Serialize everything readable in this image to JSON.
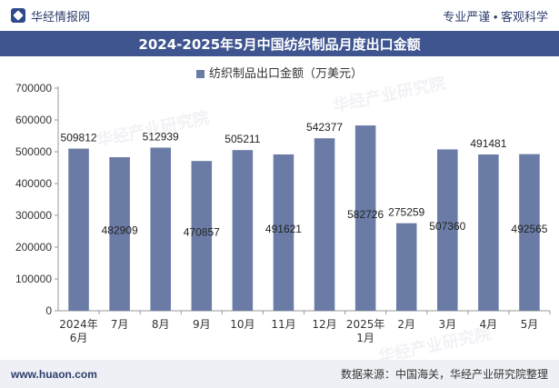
{
  "header": {
    "brand": "华经情报网",
    "slogan": "专业严谨 • 客观科学"
  },
  "watermarks": [
    "华经产业研究院",
    "华经产业研究院",
    "华经产业研究院"
  ],
  "footer": {
    "url": "www.huaon.com",
    "source": "数据来源：中国海关，华经产业研究院整理"
  },
  "colors": {
    "bar": "#6a7ca6",
    "title_bg": "#3e5590"
  },
  "chart_data": {
    "type": "bar",
    "title": "2024-2025年5月中国纺织制品月度出口金额",
    "legend_position": "top",
    "categories": [
      [
        "2024年",
        "6月"
      ],
      [
        "7月"
      ],
      [
        "8月"
      ],
      [
        "9月"
      ],
      [
        "10月"
      ],
      [
        "11月"
      ],
      [
        "12月"
      ],
      [
        "2025年",
        "1月"
      ],
      [
        "2月"
      ],
      [
        "3月"
      ],
      [
        "4月"
      ],
      [
        "5月"
      ]
    ],
    "series": [
      {
        "name": "纺织制品出口金额（万美元）",
        "values": [
          509812,
          482909,
          512939,
          470857,
          505211,
          491621,
          542377,
          582726,
          275259,
          507360,
          491481,
          492565
        ],
        "label_positions": [
          "top",
          "inside",
          "top",
          "inside",
          "top",
          "inside",
          "top",
          "inside",
          "top",
          "inside",
          "top",
          "inside"
        ]
      }
    ],
    "ylim": [
      0,
      700000
    ],
    "yticks": [
      0,
      100000,
      200000,
      300000,
      400000,
      500000,
      600000,
      700000
    ],
    "grid": false
  }
}
